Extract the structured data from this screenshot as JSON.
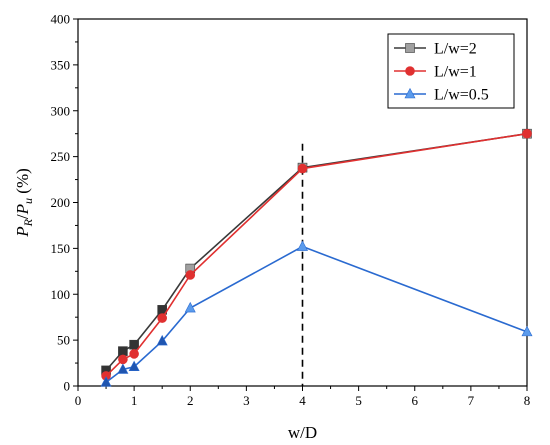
{
  "chart_data": {
    "type": "line",
    "xlabel": "w/D",
    "ylabel": {
      "p1": "P",
      "s1": "R",
      "slash": "/",
      "p2": "P",
      "s2": "u",
      "unit": " (%)"
    },
    "xlim": [
      0,
      8
    ],
    "ylim": [
      0,
      400
    ],
    "xticks": [
      0,
      1,
      2,
      3,
      4,
      5,
      6,
      7,
      8
    ],
    "yticks": [
      0,
      50,
      100,
      150,
      200,
      250,
      300,
      350,
      400
    ],
    "grid": false,
    "legend_position": "top-right",
    "vline": {
      "x": 4,
      "style": "dashed",
      "color": "#000000"
    },
    "series": [
      {
        "name": "L/w=2",
        "color": "#3a3a3a",
        "marker": "square",
        "marker_color": "#a0a0a0",
        "highlight_color": "#333333",
        "x": [
          0.5,
          0.8,
          1,
          1.5,
          2,
          4,
          8
        ],
        "y": [
          17,
          38,
          45,
          83,
          128,
          238,
          275
        ]
      },
      {
        "name": "L/w=1",
        "color": "#e03030",
        "marker": "circle",
        "marker_color": "#e03030",
        "x": [
          0.5,
          0.8,
          1,
          1.5,
          2,
          4,
          8
        ],
        "y": [
          11,
          29,
          35,
          74,
          121,
          237,
          275
        ]
      },
      {
        "name": "L/w=0.5",
        "color": "#2a6ad0",
        "marker": "triangle",
        "marker_color": "#5b9bec",
        "highlight_color": "#1f55b0",
        "x": [
          0.5,
          0.8,
          1,
          1.5,
          2,
          4,
          8
        ],
        "y": [
          4,
          18,
          21,
          49,
          85,
          152,
          59
        ]
      }
    ]
  }
}
